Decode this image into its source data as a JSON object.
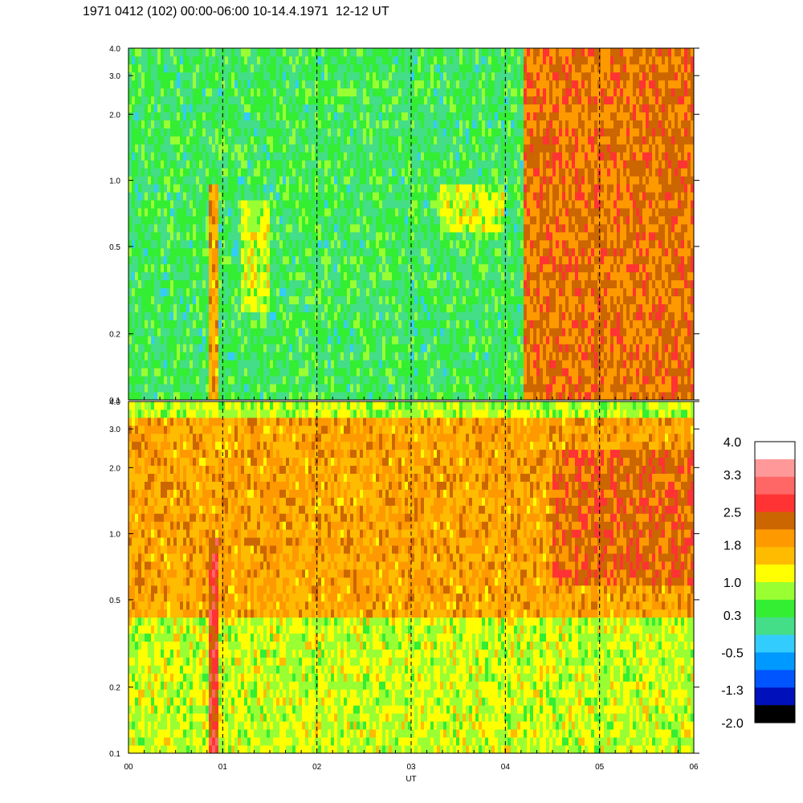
{
  "header": {
    "title": "1971 0412 (102) 00:00-06:00 10-14.4.1971  12-12 UT"
  },
  "chart_data": {
    "type": "heatmap",
    "title": "1971 0412 (102) 00:00-06:00 10-14.4.1971  12-12 UT",
    "xlabel": "UT",
    "x_ticks": [
      "00",
      "01",
      "02",
      "03",
      "04",
      "05",
      "06"
    ],
    "xlim": [
      0,
      6
    ],
    "y_scale": "log",
    "ylim": [
      0.1,
      4.0
    ],
    "y_ticks": [
      "0.1",
      "0.2",
      "0.5",
      "1.0",
      "2.0",
      "3.0",
      "4.0"
    ],
    "grid": "dashed vertical lines at each hour",
    "panels": [
      {
        "name": "upper",
        "dominant_levels": [
          {
            "x_range": [
              0.0,
              4.2
            ],
            "y_range": [
              0.1,
              4.0
            ],
            "level": 0.3
          },
          {
            "x_range": [
              0.85,
              0.95
            ],
            "y_range": [
              0.1,
              1.0
            ],
            "level": 1.8
          },
          {
            "x_range": [
              1.2,
              1.5
            ],
            "y_range": [
              0.25,
              0.8
            ],
            "level": 1.0
          },
          {
            "x_range": [
              3.3,
              4.0
            ],
            "y_range": [
              0.6,
              1.0
            ],
            "level": 1.0
          },
          {
            "x_range": [
              4.2,
              6.0
            ],
            "y_range": [
              0.1,
              4.0
            ],
            "level": 2.2
          }
        ]
      },
      {
        "name": "lower",
        "dominant_levels": [
          {
            "x_range": [
              0.0,
              6.0
            ],
            "y_range": [
              0.1,
              0.4
            ],
            "level": 1.0
          },
          {
            "x_range": [
              0.0,
              6.0
            ],
            "y_range": [
              0.4,
              3.5
            ],
            "level": 1.8
          },
          {
            "x_range": [
              0.85,
              0.95
            ],
            "y_range": [
              0.1,
              1.0
            ],
            "level": 2.6
          },
          {
            "x_range": [
              4.5,
              6.0
            ],
            "y_range": [
              0.6,
              2.5
            ],
            "level": 2.3
          },
          {
            "x_range": [
              0.0,
              6.0
            ],
            "y_range": [
              3.5,
              4.0
            ],
            "level": 0.9
          }
        ]
      }
    ],
    "colorbar": {
      "labels": [
        "4.0",
        "3.3",
        "2.5",
        "1.8",
        "1.0",
        "0.3",
        "-0.5",
        "-1.3",
        "-2.0"
      ],
      "min": -2.0,
      "max": 4.0,
      "colors": [
        "#ffffff",
        "#ff9999",
        "#ff6666",
        "#ff3333",
        "#cc6600",
        "#ff9900",
        "#ffbb00",
        "#ffff00",
        "#99ff33",
        "#33ee33",
        "#44dd88",
        "#33ccff",
        "#0099ff",
        "#0055ff",
        "#0011bb",
        "#000000"
      ]
    }
  }
}
